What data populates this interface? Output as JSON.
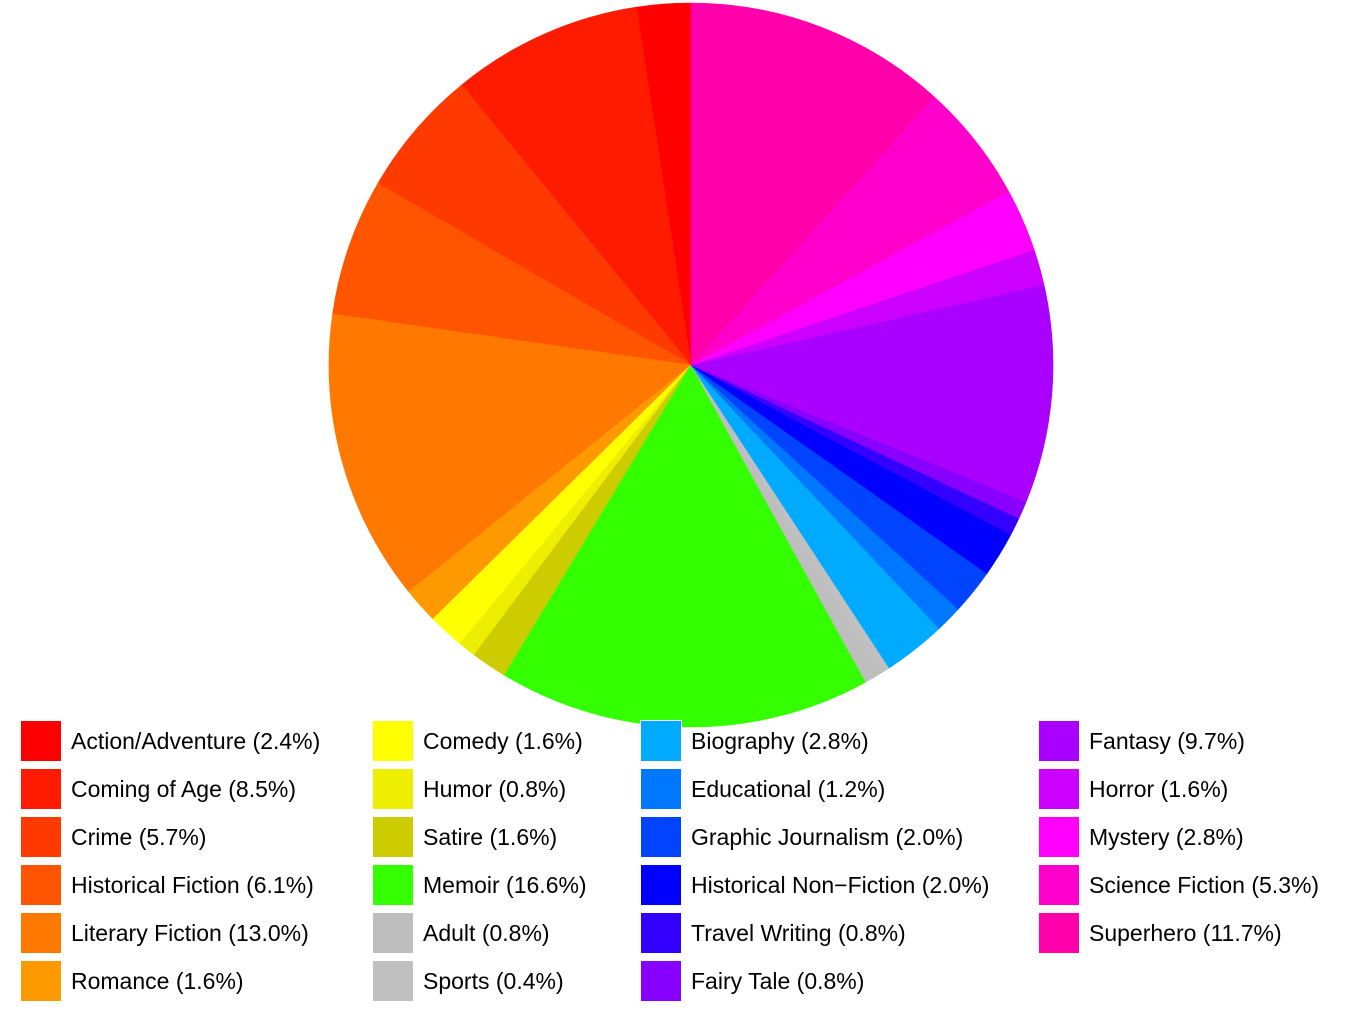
{
  "chart_data": {
    "type": "pie",
    "title": "",
    "start": "12 o'clock",
    "direction": "counterclockwise",
    "slices": [
      {
        "name": "Action/Adventure",
        "label": "Action/Adventure (2.4%)",
        "value": 2.4,
        "color": "#ff0000"
      },
      {
        "name": "Coming of Age",
        "label": "Coming of Age (8.5%)",
        "value": 8.5,
        "color": "#ff1b00"
      },
      {
        "name": "Crime",
        "label": "Crime (5.7%)",
        "value": 5.7,
        "color": "#ff3a00"
      },
      {
        "name": "Historical Fiction",
        "label": "Historical Fiction (6.1%)",
        "value": 6.1,
        "color": "#ff5500"
      },
      {
        "name": "Literary Fiction",
        "label": "Literary Fiction (13.0%)",
        "value": 13.0,
        "color": "#ff7800"
      },
      {
        "name": "Romance",
        "label": "Romance (1.6%)",
        "value": 1.6,
        "color": "#ff9900"
      },
      {
        "name": "Comedy",
        "label": "Comedy (1.6%)",
        "value": 1.6,
        "color": "#ffff00"
      },
      {
        "name": "Humor",
        "label": "Humor (0.8%)",
        "value": 0.8,
        "color": "#eeee00"
      },
      {
        "name": "Satire",
        "label": "Satire (1.6%)",
        "value": 1.6,
        "color": "#cccc00"
      },
      {
        "name": "Memoir",
        "label": "Memoir  (16.6%)",
        "value": 16.6,
        "color": "#33ff00"
      },
      {
        "name": "Adult",
        "label": "Adult (0.8%)",
        "value": 0.8,
        "color": "#bebebe"
      },
      {
        "name": "Sports",
        "label": "Sports (0.4%)",
        "value": 0.4,
        "color": "#c0c0c0"
      },
      {
        "name": "Biography",
        "label": "Biography (2.8%)",
        "value": 2.8,
        "color": "#00aaff"
      },
      {
        "name": "Educational",
        "label": "Educational  (1.2%)",
        "value": 1.2,
        "color": "#0077ff"
      },
      {
        "name": "Graphic Journalism",
        "label": "Graphic Journalism (2.0%)",
        "value": 2.0,
        "color": "#0044ff"
      },
      {
        "name": "Historical Non-Fiction",
        "label": "Historical Non−Fiction (2.0%)",
        "value": 2.0,
        "color": "#0000ff"
      },
      {
        "name": "Travel Writing",
        "label": "Travel Writing (0.8%)",
        "value": 0.8,
        "color": "#3300ff"
      },
      {
        "name": "Fairy Tale",
        "label": "Fairy Tale  (0.8%)",
        "value": 0.8,
        "color": "#8800ff"
      },
      {
        "name": "Fantasy",
        "label": "Fantasy (9.7%)",
        "value": 9.7,
        "color": "#aa00ff"
      },
      {
        "name": "Horror",
        "label": "Horror (1.6%)",
        "value": 1.6,
        "color": "#cc00ff"
      },
      {
        "name": "Mystery",
        "label": "Mystery (2.8%)",
        "value": 2.8,
        "color": "#ff00ff"
      },
      {
        "name": "Science Fiction",
        "label": "Science Fiction (5.3%)",
        "value": 5.3,
        "color": "#ff00cc"
      },
      {
        "name": "Superhero",
        "label": "Superhero (11.7%)",
        "value": 11.7,
        "color": "#ff00aa"
      }
    ],
    "legend": {
      "placement": "bottom",
      "columns": [
        [
          "Action/Adventure",
          "Coming of Age",
          "Crime",
          "Historical Fiction",
          "Literary Fiction",
          "Romance"
        ],
        [
          "Comedy",
          "Humor",
          "Satire",
          "Memoir",
          "Adult",
          "Sports"
        ],
        [
          "Biography",
          "Educational",
          "Graphic Journalism",
          "Historical Non-Fiction",
          "Travel Writing",
          "Fairy Tale"
        ],
        [
          "Fantasy",
          "Horror",
          "Mystery",
          "Science Fiction",
          "Superhero"
        ]
      ]
    }
  }
}
